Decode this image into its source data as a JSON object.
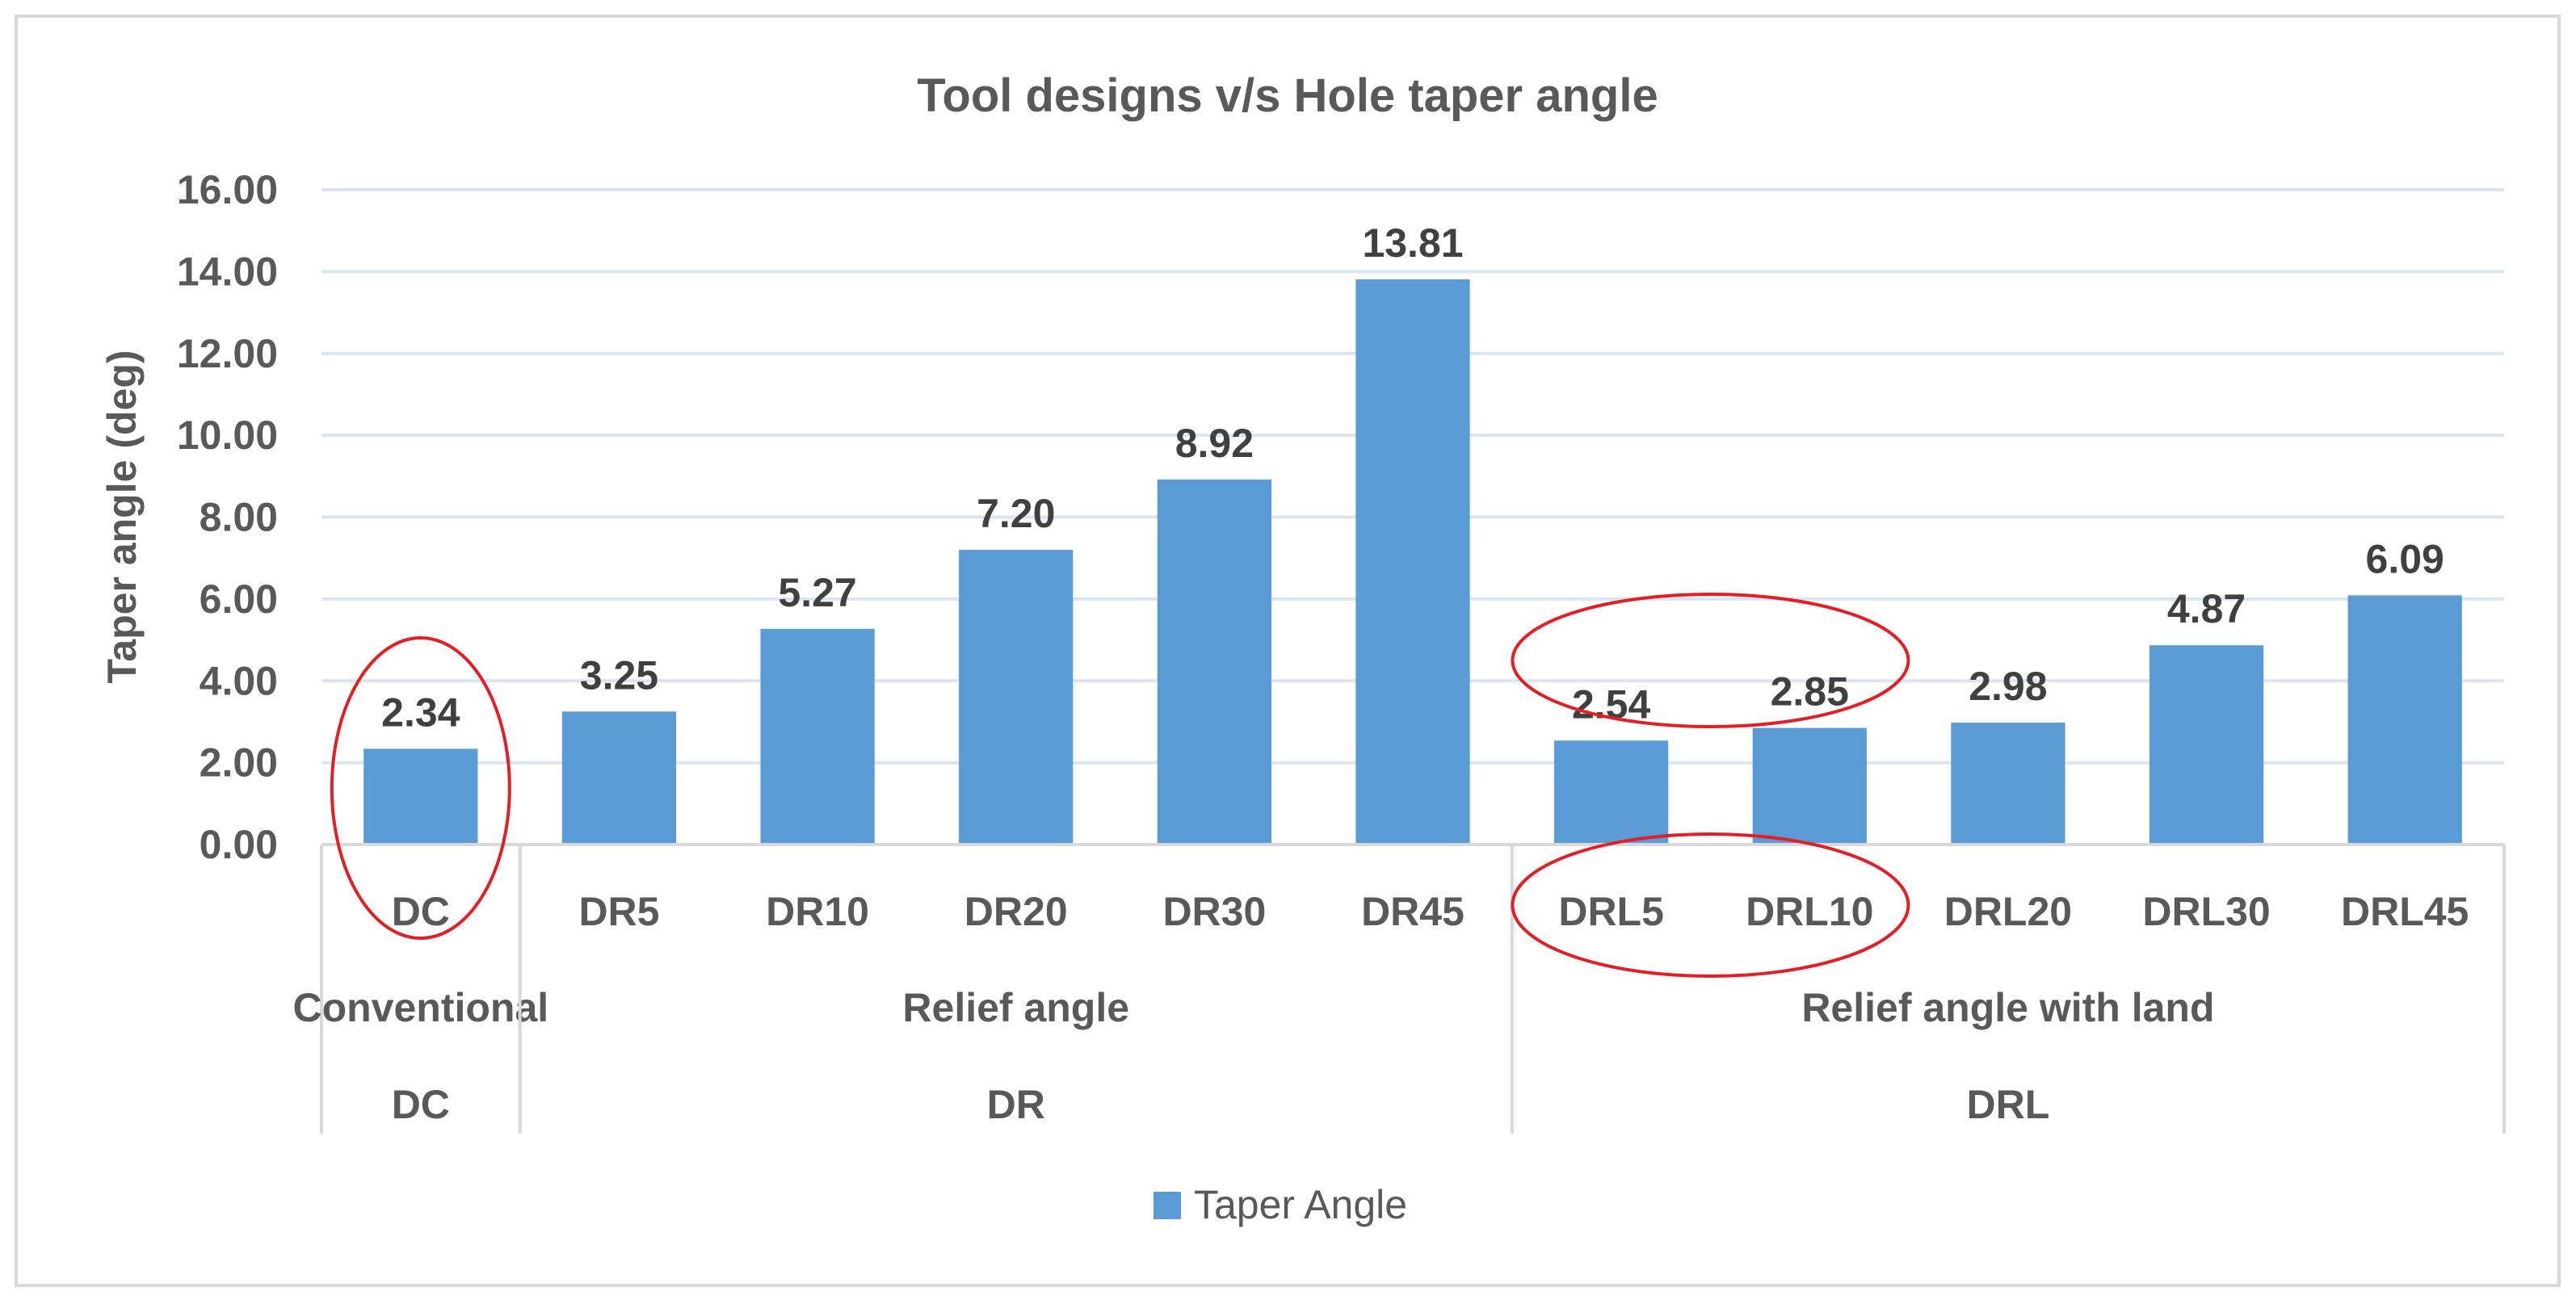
{
  "chart_data": {
    "type": "bar",
    "title": "Tool designs v/s Hole taper angle",
    "ylabel": "Taper angle (deg)",
    "xlabel": "",
    "ylim": [
      0,
      16
    ],
    "yticks": [
      "0.00",
      "2.00",
      "4.00",
      "6.00",
      "8.00",
      "10.00",
      "12.00",
      "14.00",
      "16.00"
    ],
    "categories": [
      "DC",
      "DR5",
      "DR10",
      "DR20",
      "DR30",
      "DR45",
      "DRL5",
      "DRL10",
      "DRL20",
      "DRL30",
      "DRL45"
    ],
    "groups": [
      {
        "label": "Conventional",
        "code": "DC",
        "start": 0,
        "end": 0
      },
      {
        "label": "Relief angle",
        "code": "DR",
        "start": 1,
        "end": 5
      },
      {
        "label": "Relief angle with land",
        "code": "DRL",
        "start": 6,
        "end": 10
      }
    ],
    "series": [
      {
        "name": "Taper Angle",
        "values": [
          2.34,
          3.25,
          5.27,
          7.2,
          8.92,
          13.81,
          2.54,
          2.85,
          2.98,
          4.87,
          6.09
        ],
        "labels": [
          "2.34",
          "3.25",
          "5.27",
          "7.20",
          "8.92",
          "13.81",
          "2.54",
          "2.85",
          "2.98",
          "4.87",
          "6.09"
        ],
        "color": "#5b9bd5"
      }
    ],
    "grid": true,
    "legend": "bottom-center",
    "highlight_color": "#e31e24"
  }
}
